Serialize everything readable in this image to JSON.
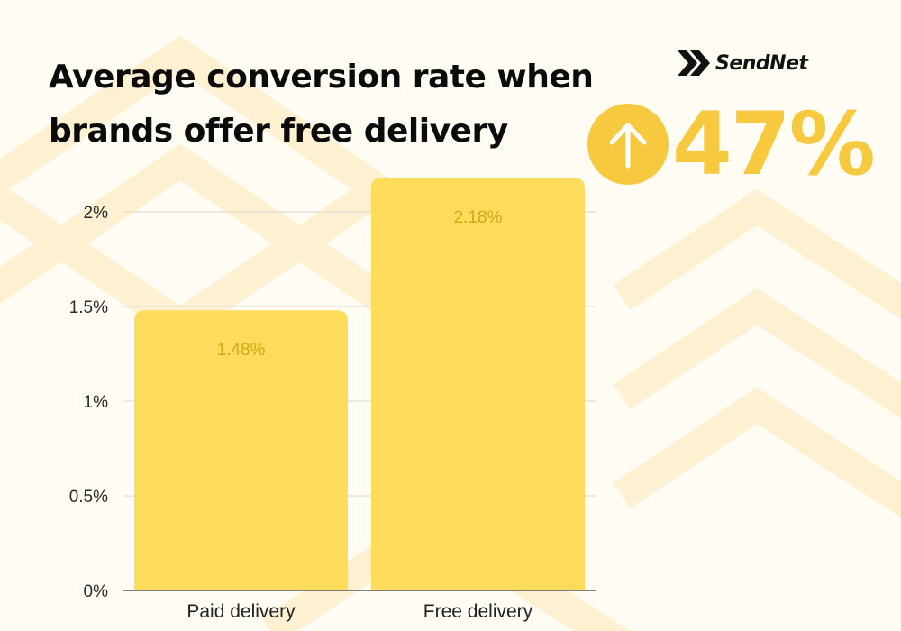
{
  "header": {
    "title_line1": "Average conversion rate when",
    "title_line2": "brands offer free delivery"
  },
  "brand": {
    "name": "SendNet",
    "logo_icon": "double-chevron-icon"
  },
  "highlight": {
    "value": "47%",
    "icon": "arrow-up-icon",
    "color": "#f7c93f"
  },
  "colors": {
    "bar": "#fddc5c",
    "label": "#d2a815",
    "background": "#fffcf4",
    "pattern": "#fdf1d2"
  },
  "chart_data": {
    "type": "bar",
    "categories": [
      "Paid delivery",
      "Free delivery"
    ],
    "values": [
      1.48,
      2.18
    ],
    "data_labels": [
      "1.48%",
      "2.18%"
    ],
    "yticks": [
      0,
      0.5,
      1,
      1.5,
      2
    ],
    "ytick_labels": [
      "0%",
      "0.5%",
      "1%",
      "1.5%",
      "2%"
    ],
    "ylim": [
      0,
      2
    ],
    "grid": true,
    "legend": "none",
    "title": "Average conversion rate when brands offer free delivery"
  }
}
